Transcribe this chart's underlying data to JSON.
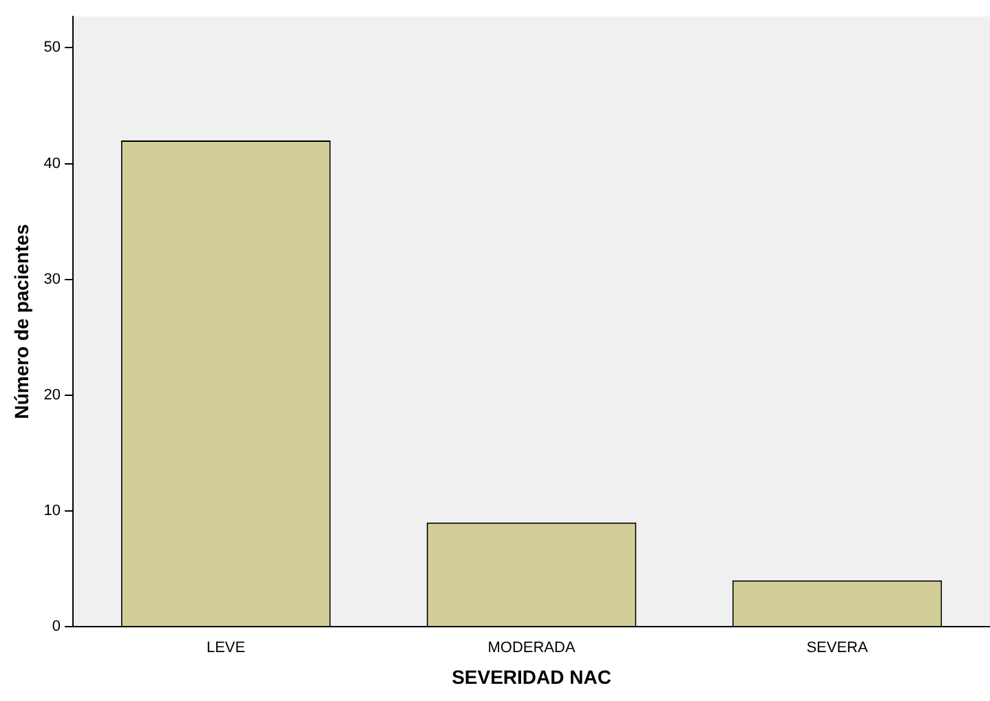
{
  "chart_data": {
    "type": "bar",
    "xlabel": "SEVERIDAD NAC",
    "ylabel": "Número de pacientes",
    "categories": [
      "LEVE",
      "MODERADA",
      "SEVERA"
    ],
    "values": [
      42,
      9,
      4
    ],
    "color": "#d3ce97",
    "ylim": [
      0,
      52.7
    ],
    "yticks": [
      0,
      10,
      20,
      30,
      40,
      50
    ],
    "grid": false,
    "legend": false
  }
}
